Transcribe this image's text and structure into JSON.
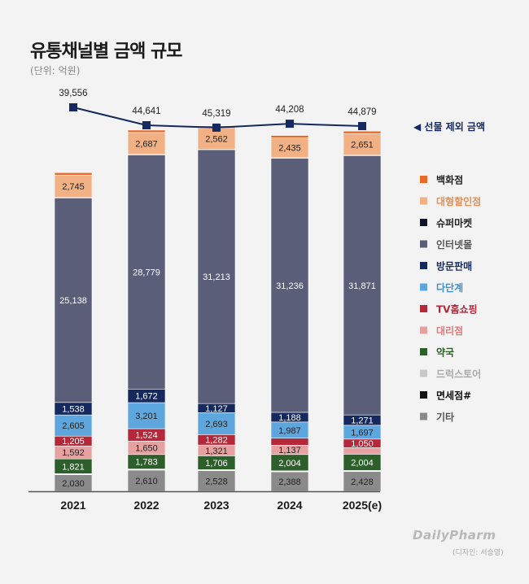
{
  "title": "유통채널별 금액 규모",
  "unit": "(단위: 억원)",
  "brand": "DailyPharm",
  "credit": "(디자인: 서승영)",
  "chart_data": {
    "type": "bar",
    "stacked": true,
    "categories": [
      "2021",
      "2022",
      "2023",
      "2024",
      "2025(e)"
    ],
    "series": [
      {
        "name": "기타",
        "color": "#8a8a8a",
        "values": [
          2030,
          2610,
          2528,
          2388,
          2428
        ]
      },
      {
        "name": "면세점#",
        "color": "#111111",
        "values": [
          60,
          60,
          60,
          60,
          60
        ]
      },
      {
        "name": "드럭스토어",
        "color": "#c8c8c8",
        "values": [
          70,
          70,
          70,
          70,
          70
        ]
      },
      {
        "name": "약국",
        "color": "#2d5f2a",
        "values": [
          1821,
          1783,
          1706,
          2004,
          2004
        ]
      },
      {
        "name": "대리점",
        "color": "#e8a1a1",
        "values": [
          1592,
          1650,
          1321,
          1137,
          808
        ]
      },
      {
        "name": "TV홈쇼핑",
        "color": "#b5283a",
        "values": [
          1205,
          1524,
          1282,
          871,
          1050
        ]
      },
      {
        "name": "다단계",
        "color": "#5ea7de",
        "values": [
          2605,
          3201,
          2693,
          1987,
          1697
        ]
      },
      {
        "name": "방문판매",
        "color": "#15295e",
        "values": [
          1538,
          1672,
          1127,
          1188,
          1271
        ]
      },
      {
        "name": "인터넷몰",
        "color": "#5b5e78",
        "values": [
          25138,
          28779,
          31213,
          31236,
          31871
        ]
      },
      {
        "name": "슈퍼마켓",
        "color": "#0f1426",
        "values": [
          70,
          70,
          70,
          70,
          70
        ]
      },
      {
        "name": "대형할인점",
        "color": "#f2b184",
        "values": [
          2745,
          2687,
          2562,
          2435,
          2651
        ]
      },
      {
        "name": "백화점",
        "color": "#e8692a",
        "values": [
          300,
          300,
          300,
          300,
          300
        ]
      }
    ],
    "value_labels": {
      "기타": [
        "2,030",
        "2,610",
        "2,528",
        "2,388",
        "2,428"
      ],
      "약국": [
        "1,821",
        "1,783",
        "1,706",
        "2,004",
        "2,004"
      ],
      "대리점": [
        "1,592",
        "1,650",
        "1,321",
        "1,137",
        "808"
      ],
      "TV홈쇼핑": [
        "1,205",
        "1,524",
        "1,282",
        "871",
        "1,050"
      ],
      "다단계": [
        "2,605",
        "3,201",
        "2,693",
        "1,987",
        "1,697"
      ],
      "방문판매": [
        "1,538",
        "1,672",
        "1,127",
        "1,188",
        "1,271"
      ],
      "인터넷몰": [
        "25,138",
        "28,779",
        "31,213",
        "31,236",
        "31,871"
      ],
      "대형할인점": [
        "2,745",
        "2,687",
        "2,562",
        "2,435",
        "2,651"
      ]
    },
    "line": {
      "name": "◀ 선물 제외 금액",
      "values": [
        39556,
        44641,
        45319,
        44208,
        44879
      ],
      "labels": [
        "39,556",
        "44,641",
        "45,319",
        "44,208",
        "44,879"
      ],
      "color": "#15295e"
    },
    "legend_order": [
      "백화점",
      "대형할인점",
      "슈퍼마켓",
      "인터넷몰",
      "방문판매",
      "다단계",
      "TV홈쇼핑",
      "대리점",
      "약국",
      "드럭스토어",
      "면세점#",
      "기타"
    ],
    "legend_text_colors": {
      "백화점": "#222222",
      "대형할인점": "#e58f54",
      "슈퍼마켓": "#222222",
      "인터넷몰": "#555555",
      "방문판매": "#15295e",
      "다단계": "#3d8fcf",
      "TV홈쇼핑": "#b5283a",
      "대리점": "#e07a7a",
      "약국": "#2d5f2a",
      "드럭스토어": "#aaaaaa",
      "면세점#": "#111111",
      "기타": "#555555"
    },
    "legend_placement": "right",
    "grid": false
  }
}
